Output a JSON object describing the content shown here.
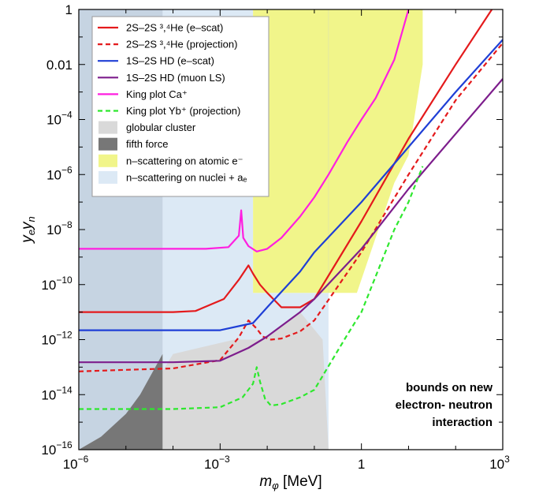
{
  "chart_data": {
    "type": "line",
    "xscale": "log",
    "yscale": "log",
    "xlim": [
      1e-06,
      1000
    ],
    "ylim": [
      1e-16,
      1
    ],
    "xlabel": {
      "main": "m",
      "sub": "φ",
      "suffix": " [MeV]"
    },
    "ylabel": {
      "p1": "y",
      "s1": "e",
      "p2": "y",
      "s2": "n"
    },
    "x_ticks": [
      {
        "value": 1e-06,
        "base": "10",
        "exp": "−6"
      },
      {
        "value": 0.001,
        "base": "10",
        "exp": "−3"
      },
      {
        "value": 1,
        "base": "1",
        "exp": ""
      },
      {
        "value": 1000,
        "base": "10",
        "exp": "3"
      }
    ],
    "y_ticks": [
      {
        "value": 1,
        "base": "1",
        "exp": ""
      },
      {
        "value": 0.01,
        "base": "0.01",
        "exp": ""
      },
      {
        "value": 0.0001,
        "base": "10",
        "exp": "−4"
      },
      {
        "value": 1e-06,
        "base": "10",
        "exp": "−6"
      },
      {
        "value": 1e-08,
        "base": "10",
        "exp": "−8"
      },
      {
        "value": 1e-10,
        "base": "10",
        "exp": "−10"
      },
      {
        "value": 1e-12,
        "base": "10",
        "exp": "−12"
      },
      {
        "value": 1e-14,
        "base": "10",
        "exp": "−14"
      },
      {
        "value": 1e-16,
        "base": "10",
        "exp": "−16"
      }
    ],
    "series": [
      {
        "name": "2S–2S ³,⁴He (e–scat)",
        "color": "#e41a1c",
        "style": "solid",
        "x": [
          1e-06,
          1e-05,
          0.0001,
          0.0003,
          0.0012,
          0.0025,
          0.004,
          0.005,
          0.007,
          0.01,
          0.02,
          0.05,
          0.1,
          1,
          10,
          100,
          1000
        ],
        "y": [
          1e-11,
          1e-11,
          1e-11,
          1.1e-11,
          3e-11,
          1.5e-10,
          5e-10,
          2.5e-10,
          1e-10,
          5e-11,
          1.5e-11,
          1.5e-11,
          3e-11,
          2e-08,
          2e-05,
          0.01,
          4
        ]
      },
      {
        "name": "2S–2S ³,⁴He (projection)",
        "color": "#e41a1c",
        "style": "dashed",
        "x": [
          1e-06,
          1e-05,
          0.0001,
          0.001,
          0.0025,
          0.004,
          0.006,
          0.008,
          0.012,
          0.02,
          0.05,
          0.1,
          1,
          10,
          100,
          1000
        ],
        "y": [
          7e-14,
          8e-14,
          9e-14,
          1.8e-13,
          1.2e-12,
          5e-12,
          2.5e-12,
          1.3e-12,
          1e-12,
          1.1e-12,
          2e-12,
          5e-12,
          1.5e-09,
          1e-06,
          0.0005,
          0.06
        ]
      },
      {
        "name": "1S–2S HD (e–scat)",
        "color": "#1f3fd6",
        "style": "solid",
        "x": [
          1e-06,
          1e-05,
          0.0001,
          0.001,
          0.005,
          0.01,
          0.05,
          0.1,
          1,
          10,
          100,
          1000
        ],
        "y": [
          2.2e-12,
          2.2e-12,
          2.2e-12,
          2.2e-12,
          4e-12,
          1.5e-11,
          3e-10,
          1.5e-09,
          1e-07,
          1e-05,
          0.001,
          0.08
        ]
      },
      {
        "name": "1S–2S HD (muon LS)",
        "color": "#7d1d8c",
        "style": "solid",
        "x": [
          1e-06,
          1e-05,
          0.0001,
          0.001,
          0.004,
          0.01,
          0.05,
          0.1,
          1,
          10,
          100,
          1000
        ],
        "y": [
          1.5e-13,
          1.5e-13,
          1.5e-13,
          1.7e-13,
          5e-13,
          1.3e-12,
          1e-11,
          3e-11,
          2e-09,
          3e-07,
          3e-05,
          0.003
        ]
      },
      {
        "name": "King plot Ca⁺",
        "color": "#ff1fe0",
        "style": "solid",
        "x": [
          1e-06,
          1e-05,
          0.0001,
          0.0005,
          0.0015,
          0.0025,
          0.0028,
          0.0031,
          0.004,
          0.006,
          0.01,
          0.02,
          0.05,
          0.1,
          0.2,
          0.5,
          1,
          2,
          5,
          10
        ],
        "y": [
          2e-09,
          2e-09,
          2e-09,
          2e-09,
          2.3e-09,
          6e-09,
          5e-08,
          5e-09,
          2.5e-09,
          1.6e-09,
          2e-09,
          5e-09,
          3e-08,
          1.5e-07,
          1e-06,
          1.5e-05,
          0.0001,
          0.0006,
          0.015,
          1
        ]
      },
      {
        "name": "King plot Yb⁺ (projection)",
        "color": "#2ee82e",
        "style": "dashed",
        "x": [
          1e-06,
          1e-05,
          0.0001,
          0.001,
          0.003,
          0.005,
          0.006,
          0.007,
          0.009,
          0.012,
          0.02,
          0.05,
          0.1,
          0.5,
          1,
          5,
          10,
          20
        ],
        "y": [
          3e-15,
          3e-15,
          3e-15,
          3.5e-15,
          8e-15,
          2.5e-14,
          1e-13,
          3e-14,
          7e-15,
          4e-15,
          4.5e-15,
          8e-15,
          1.5e-14,
          1.5e-12,
          1e-11,
          1e-08,
          1e-07,
          2e-06
        ]
      }
    ],
    "regions": [
      {
        "name": "globular cluster",
        "color": "#d9d9d9",
        "polygon": [
          [
            1e-06,
            1e-16
          ],
          [
            0.2,
            1e-16
          ],
          [
            0.15,
            1e-12
          ],
          [
            0.05,
            1e-11
          ],
          [
            0.008,
            1e-12
          ],
          [
            0.002,
            1e-12
          ],
          [
            0.0001,
            3e-13
          ],
          [
            3e-05,
            1e-14
          ],
          [
            1e-05,
            1e-15
          ],
          [
            3e-06,
            3e-16
          ]
        ]
      },
      {
        "name": "fifth force",
        "color": "#777777",
        "polygon": [
          [
            1e-06,
            1e-16
          ],
          [
            6e-05,
            1e-16
          ],
          [
            6e-05,
            3e-13
          ],
          [
            2e-05,
            1e-14
          ],
          [
            1e-05,
            2e-15
          ],
          [
            3e-06,
            3e-16
          ]
        ]
      },
      {
        "name": "n–scattering on atomic e⁻",
        "color": "#f1f58a",
        "polygon": [
          [
            0.005,
            1
          ],
          [
            20,
            1
          ],
          [
            20,
            0.01
          ],
          [
            10,
            5e-06
          ],
          [
            5,
            5e-07
          ],
          [
            0.8,
            5e-11
          ],
          [
            0.005,
            5e-11
          ]
        ]
      },
      {
        "name": "n–scattering on nuclei + aₑ",
        "color": "#dce9f5",
        "polygon": [
          [
            1e-06,
            1
          ],
          [
            0.005,
            1
          ],
          [
            0.005,
            5e-11
          ],
          [
            0.2,
            5e-11
          ],
          [
            0.2,
            1e-16
          ],
          [
            1e-06,
            1e-16
          ]
        ]
      },
      {
        "name": "",
        "color": "#c6d4e2",
        "polygon": [
          [
            1e-06,
            1
          ],
          [
            6e-05,
            1
          ],
          [
            6e-05,
            1e-16
          ],
          [
            1e-06,
            1e-16
          ]
        ]
      }
    ],
    "annotation": [
      "bounds on new",
      "electron- neutron",
      "interaction"
    ],
    "legend_position": "top-left",
    "grid": false
  }
}
